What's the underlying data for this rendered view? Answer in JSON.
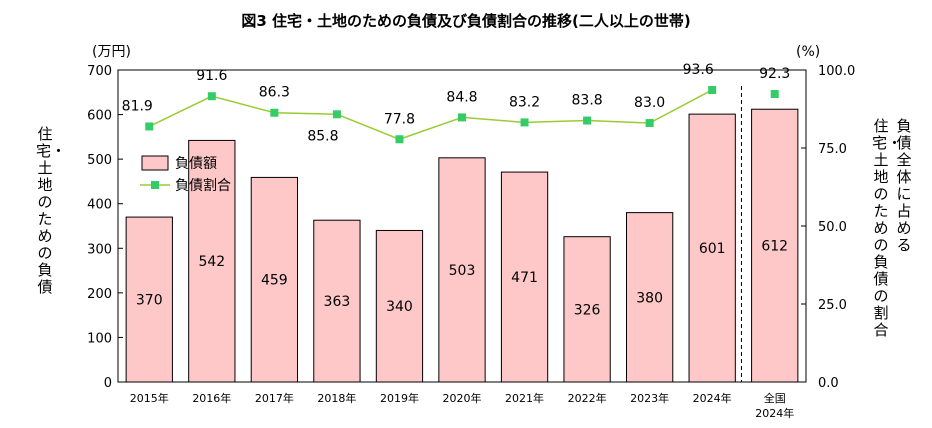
{
  "chart_data": {
    "type": "bar",
    "title": "図3 住宅・土地のための負債及び負債割合の推移(二人以上の世帯)",
    "categories": [
      "2015年",
      "2016年",
      "2017年",
      "2018年",
      "2019年",
      "2020年",
      "2021年",
      "2022年",
      "2023年",
      "2024年",
      "全国\n2024年"
    ],
    "series": [
      {
        "name": "負債額",
        "type": "bar",
        "axis": "left",
        "values": [
          370,
          542,
          459,
          363,
          340,
          503,
          471,
          326,
          380,
          601,
          612
        ],
        "color": "#ffc8c8"
      },
      {
        "name": "負債割合",
        "type": "line",
        "axis": "right",
        "values": [
          81.9,
          91.6,
          86.3,
          85.8,
          77.8,
          84.8,
          83.2,
          83.8,
          83.0,
          93.6,
          92.3
        ],
        "value_labels": [
          "81.9",
          "91.6",
          "86.3",
          "85.8",
          "77.8",
          "84.8",
          "83.2",
          "83.8",
          "83.0",
          "93.6",
          "92.3"
        ],
        "color": "#99cc33",
        "marker_color": "#33cc66"
      }
    ],
    "left_axis": {
      "unit": "(万円)",
      "label": "住宅・土地のための負債",
      "ylim": [
        0,
        700
      ],
      "ticks": [
        "0",
        "100",
        "200",
        "300",
        "400",
        "500",
        "600",
        "700"
      ]
    },
    "right_axis": {
      "unit": "(%)",
      "label_lines": [
        "負債全体に占める",
        "住宅・土地のための負債の割合"
      ],
      "ylim": [
        0,
        100
      ],
      "ticks": [
        "0.0",
        "25.0",
        "50.0",
        "75.0",
        "100.0"
      ]
    },
    "legend": {
      "placement": "upper-left",
      "bar_label": "負債額",
      "line_label": "負債割合"
    },
    "separator": "dashed line between 2024年 and 全国 2024年",
    "grid": false
  }
}
